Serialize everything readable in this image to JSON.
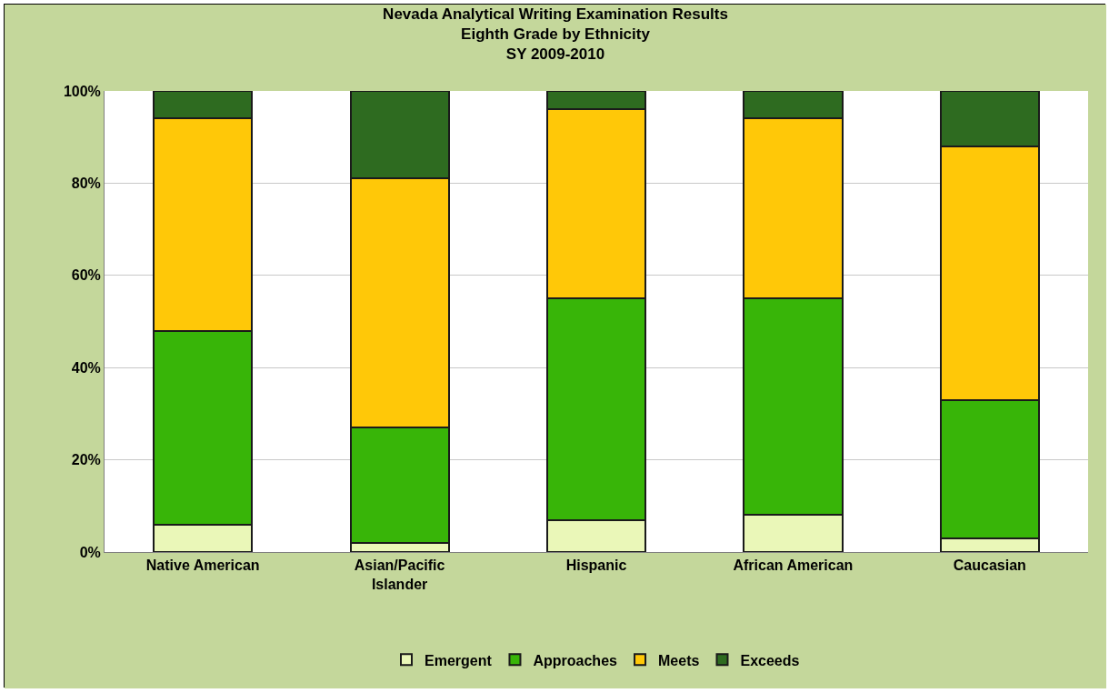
{
  "chart_data": {
    "type": "bar",
    "stacked": true,
    "title": "Nevada Analytical Writing Examination Results\nEighth Grade by Ethnicity\nSY 2009-2010",
    "categories": [
      "Native American",
      "Asian/Pacific Islander",
      "Hispanic",
      "African American",
      "Caucasian"
    ],
    "series": [
      {
        "name": "Emergent",
        "color": "#eaf7b8",
        "values": [
          6,
          2,
          7,
          8,
          3
        ]
      },
      {
        "name": "Approaches",
        "color": "#38b508",
        "values": [
          42,
          25,
          48,
          47,
          30
        ]
      },
      {
        "name": "Meets",
        "color": "#ffc808",
        "values": [
          46,
          54,
          41,
          39,
          55
        ]
      },
      {
        "name": "Exceeds",
        "color": "#2e6b20",
        "values": [
          6,
          19,
          4,
          6,
          12
        ]
      }
    ],
    "ylim": [
      0,
      100
    ],
    "yticks": [
      {
        "value": 0,
        "label": "0%"
      },
      {
        "value": 20,
        "label": "20%"
      },
      {
        "value": 40,
        "label": "40%"
      },
      {
        "value": 60,
        "label": "60%"
      },
      {
        "value": 80,
        "label": "80%"
      },
      {
        "value": 100,
        "label": "100%"
      }
    ],
    "grid": "y",
    "legend": "bottom"
  }
}
